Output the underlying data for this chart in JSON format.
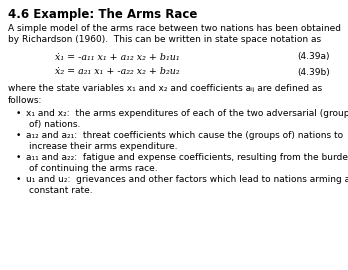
{
  "title": "4.6 Example: The Arms Race",
  "bg_color": "#ffffff",
  "text_color": "#000000",
  "intro_line1": "A simple model of the arms race between two nations has been obtained",
  "intro_line2": "by Richardson (1960).  This can be written in state space notation as",
  "eq1": "ẋ₁ = -a₁₁ x₁ + a₁₂ x₂ + b₁u₁",
  "eq1_label": "(4.39a)",
  "eq2": "ẋ₂ = a₂₁ x₁ + -a₂₂ x₂ + b₂u₂",
  "eq2_label": "(4.39b)",
  "where_line1": "where the state variables x₁ and x₂ and coefficients aᵢⱼ are defined as",
  "where_line2": "follows:",
  "bullet1_line1": "x₁ and x₂:  the arms expenditures of each of the two adversarial (groups",
  "bullet1_line2": "of) nations.",
  "bullet2_line1": "a₁₂ and a₂₁:  threat coefficients which cause the (groups of) nations to",
  "bullet2_line2": "increase their arms expenditure.",
  "bullet3_line1": "a₁₁ and a₂₂:  fatigue and expense coefficients, resulting from the burden",
  "bullet3_line2": "of continuing the arms race.",
  "bullet4_line1": "u₁ and u₂:  grievances and other factors which lead to nations arming at a",
  "bullet4_line2": "constant rate.",
  "title_fs": 8.5,
  "body_fs": 6.5,
  "eq_fs": 6.8
}
